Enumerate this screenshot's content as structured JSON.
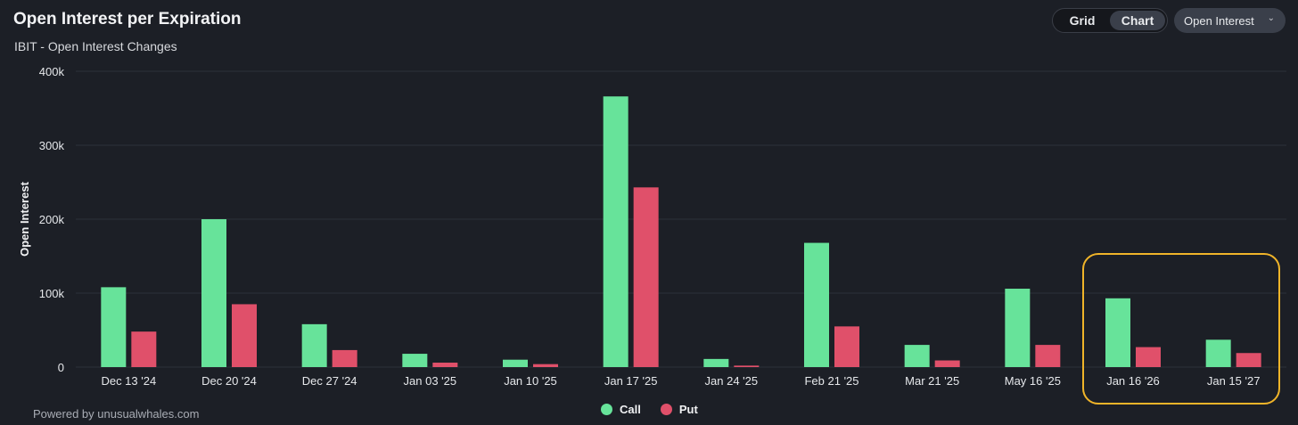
{
  "header": {
    "title": "Open Interest per Expiration",
    "subtitle": "IBIT - Open Interest Changes"
  },
  "view_toggle": {
    "grid_label": "Grid",
    "chart_label": "Chart",
    "active": "Chart"
  },
  "metric_select": {
    "value": "Open Interest"
  },
  "footer": {
    "powered_by": "Powered by unusualwhales.com"
  },
  "colors": {
    "call": "#67e39a",
    "put": "#e0506a",
    "highlight": "#f0b429"
  },
  "chart_data": {
    "type": "bar",
    "title": "Open Interest per Expiration",
    "subtitle": "IBIT - Open Interest Changes",
    "xlabel": "",
    "ylabel": "Open Interest",
    "ylim": [
      0,
      400000
    ],
    "yticks": [
      {
        "value": 0,
        "label": "0"
      },
      {
        "value": 100000,
        "label": "100k"
      },
      {
        "value": 200000,
        "label": "200k"
      },
      {
        "value": 300000,
        "label": "300k"
      },
      {
        "value": 400000,
        "label": "400k"
      }
    ],
    "grid": true,
    "legend": "bottom-center",
    "categories": [
      "Dec 13 '24",
      "Dec 20 '24",
      "Dec 27 '24",
      "Jan 03 '25",
      "Jan 10 '25",
      "Jan 17 '25",
      "Jan 24 '25",
      "Feb 21 '25",
      "Mar 21 '25",
      "May 16 '25",
      "Jan 16 '26",
      "Jan 15 '27"
    ],
    "series": [
      {
        "name": "Call",
        "values": [
          108000,
          200000,
          58000,
          18000,
          10000,
          366000,
          11000,
          168000,
          30000,
          106000,
          93000,
          37000
        ]
      },
      {
        "name": "Put",
        "values": [
          48000,
          85000,
          23000,
          6000,
          4000,
          243000,
          2000,
          55000,
          9000,
          30000,
          27000,
          19000
        ]
      }
    ],
    "highlighted_categories": [
      "Jan 16 '26",
      "Jan 15 '27"
    ]
  }
}
